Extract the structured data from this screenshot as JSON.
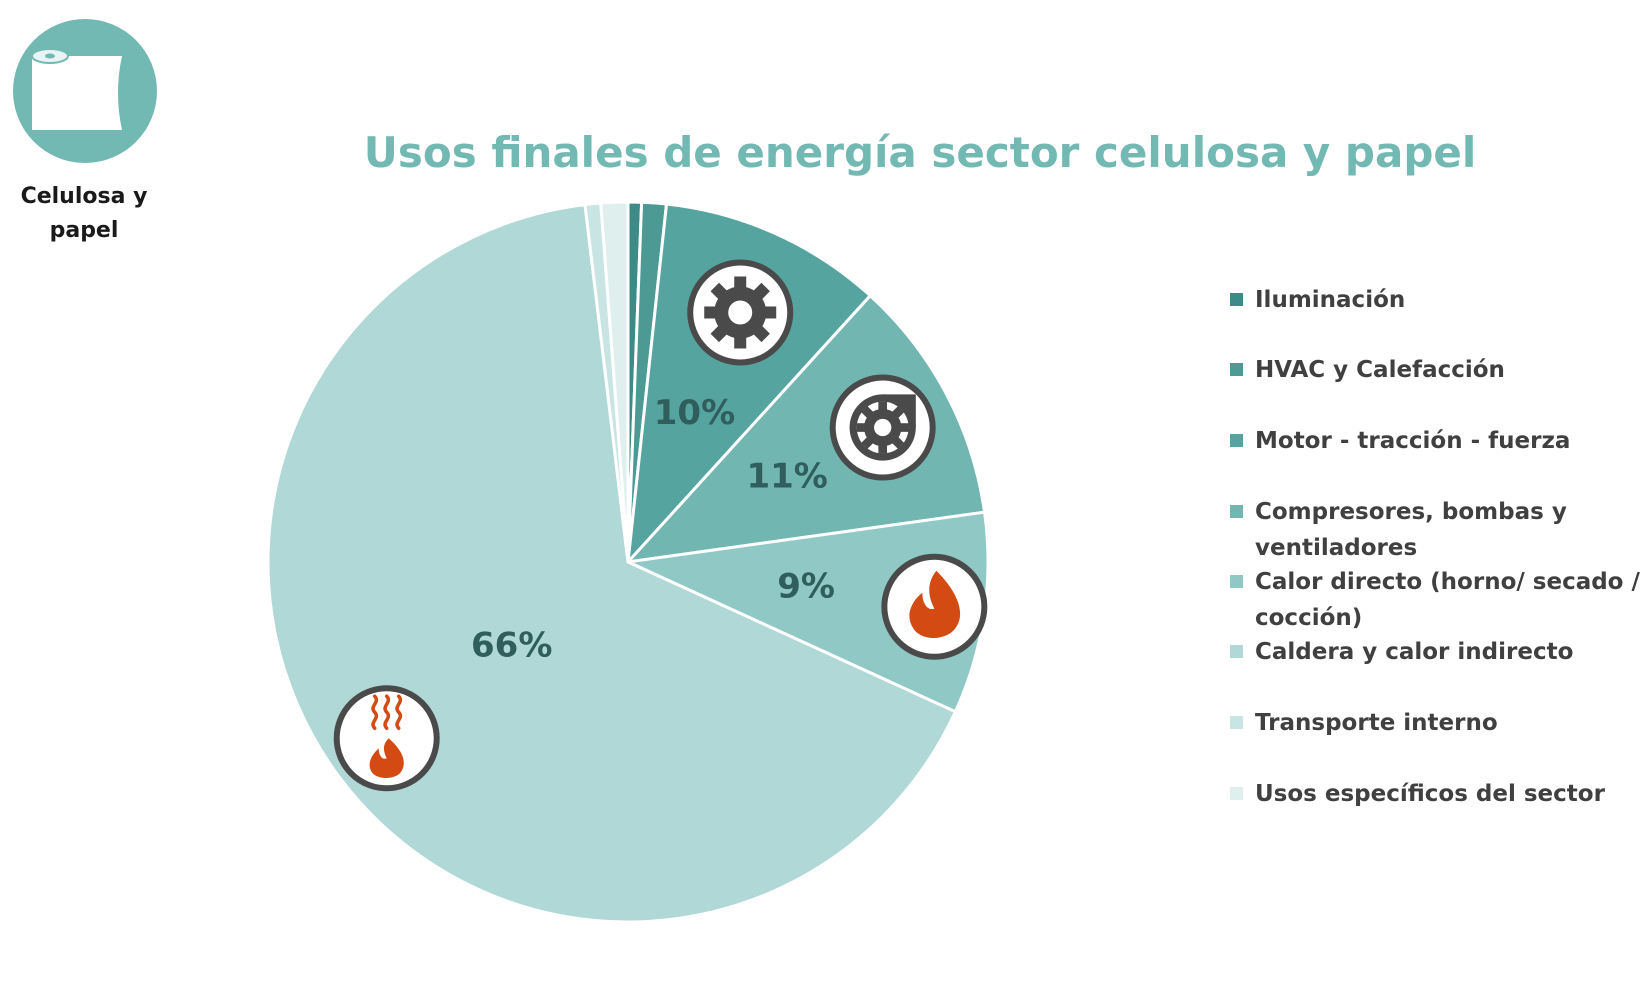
{
  "logo": {
    "label": "Celulosa y papel",
    "icon": "paper-roll-icon",
    "color": "#72b8b3"
  },
  "chart_data": {
    "type": "pie",
    "title": "Usos finales de energía sector celulosa y papel",
    "legend_position": "right",
    "start_angle_deg": 0,
    "direction": "clockwise",
    "slices": [
      {
        "name": "Iluminación",
        "value": 0.6,
        "color": "#3d8a86",
        "label": "",
        "icon": ""
      },
      {
        "name": "HVAC y Calefacción",
        "value": 1.1,
        "color": "#4d9a95",
        "label": "",
        "icon": ""
      },
      {
        "name": "Motor - tracción - fuerza",
        "value": 10,
        "color": "#55a49f",
        "label": "10%",
        "icon": "gear-icon"
      },
      {
        "name": "Compresores, bombas y ventiladores",
        "value": 11,
        "color": "#72b6b2",
        "label": "11%",
        "icon": "pump-icon"
      },
      {
        "name": "Calor directo (horno/ secado / cocción)",
        "value": 9,
        "color": "#8fc8c4",
        "label": "9%",
        "icon": "flame-icon"
      },
      {
        "name": "Caldera y calor indirecto",
        "value": 66,
        "color": "#afd8d6",
        "label": "66%",
        "icon": "boiler-heat-icon"
      },
      {
        "name": "Transporte interno",
        "value": 0.7,
        "color": "#c8e5e3",
        "label": "",
        "icon": ""
      },
      {
        "name": "Usos específicos del sector",
        "value": 1.2,
        "color": "#deefee",
        "label": "",
        "icon": ""
      }
    ]
  }
}
